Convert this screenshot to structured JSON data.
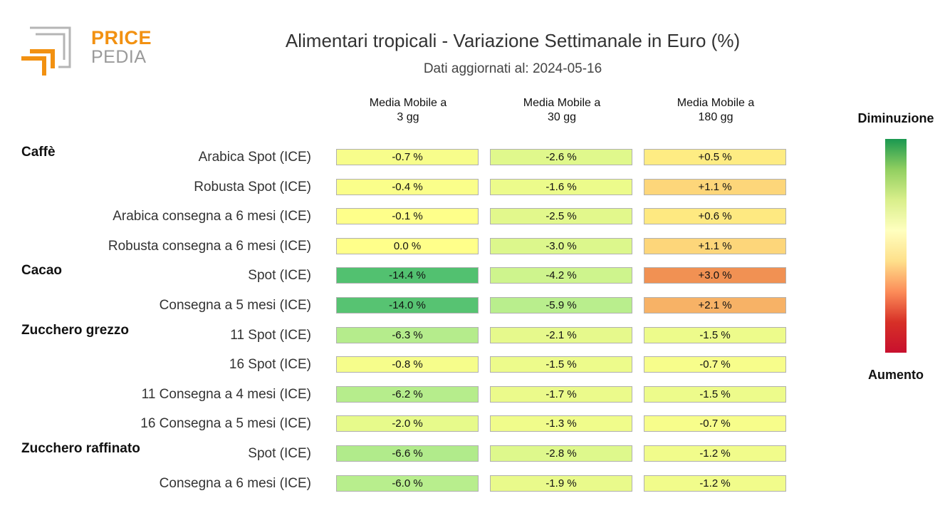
{
  "logo": {
    "line1": "PRICE",
    "line2": "PEDIA"
  },
  "chart_data": {
    "type": "table",
    "title": "Alimentari tropicali - Variazione Settimanale in Euro (%)",
    "subtitle": "Dati aggiornati al: 2024-05-16",
    "columns": [
      "Media Mobile a\n3 gg",
      "Media Mobile a\n30 gg",
      "Media Mobile a\n180 gg"
    ],
    "unit": "%",
    "legend": {
      "top": "Diminuzione",
      "bottom": "Aumento",
      "colors": [
        "#1a9850",
        "#ffffbf",
        "#d73027"
      ]
    },
    "groups": [
      {
        "name": "Caffè",
        "rows": [
          {
            "label": "Arabica Spot (ICE)",
            "values": [
              "-0.7 %",
              "-2.6 %",
              "+0.5 %"
            ]
          },
          {
            "label": "Robusta Spot (ICE)",
            "values": [
              "-0.4 %",
              "-1.6 %",
              "+1.1 %"
            ]
          },
          {
            "label": "Arabica consegna a 6 mesi (ICE)",
            "values": [
              "-0.1 %",
              "-2.5 %",
              "+0.6 %"
            ]
          },
          {
            "label": "Robusta consegna a 6 mesi (ICE)",
            "values": [
              "0.0 %",
              "-3.0 %",
              "+1.1 %"
            ]
          }
        ]
      },
      {
        "name": "Cacao",
        "rows": [
          {
            "label": "Spot (ICE)",
            "values": [
              "-14.4 %",
              "-4.2 %",
              "+3.0 %"
            ]
          },
          {
            "label": "Consegna a 5 mesi (ICE)",
            "values": [
              "-14.0 %",
              "-5.9 %",
              "+2.1 %"
            ]
          }
        ]
      },
      {
        "name": "Zucchero grezzo",
        "rows": [
          {
            "label": "11 Spot (ICE)",
            "values": [
              "-6.3 %",
              "-2.1 %",
              "-1.5 %"
            ]
          },
          {
            "label": "16 Spot (ICE)",
            "values": [
              "-0.8 %",
              "-1.5 %",
              "-0.7 %"
            ]
          },
          {
            "label": "11 Consegna a 4 mesi (ICE)",
            "values": [
              "-6.2 %",
              "-1.7 %",
              "-1.5 %"
            ]
          },
          {
            "label": "16 Consegna a 5 mesi (ICE)",
            "values": [
              "-2.0 %",
              "-1.3 %",
              "-0.7 %"
            ]
          }
        ]
      },
      {
        "name": "Zucchero raffinato",
        "rows": [
          {
            "label": "Spot (ICE)",
            "values": [
              "-6.6 %",
              "-2.8 %",
              "-1.2 %"
            ]
          },
          {
            "label": "Consegna a 6 mesi (ICE)",
            "values": [
              "-6.0 %",
              "-1.9 %",
              "-1.2 %"
            ]
          }
        ]
      }
    ]
  }
}
